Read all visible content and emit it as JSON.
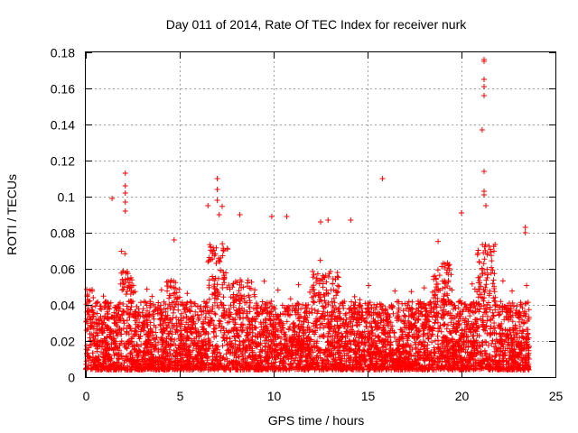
{
  "chart_data": {
    "type": "scatter",
    "title": "Day 011 of 2014, Rate Of TEC Index for receiver nurk",
    "xlabel": "GPS time / hours",
    "ylabel": "ROTI / TECUs",
    "xlim": [
      0,
      25
    ],
    "ylim": [
      0,
      0.18
    ],
    "x_ticks": [
      0,
      5,
      10,
      15,
      20,
      25
    ],
    "x_tick_labels": [
      "0",
      "5",
      "10",
      "15",
      "20",
      "25"
    ],
    "y_ticks": [
      0,
      0.02,
      0.04,
      0.06,
      0.08,
      0.1,
      0.12,
      0.14,
      0.16,
      0.18
    ],
    "y_tick_labels": [
      "0",
      "0.02",
      "0.04",
      "0.06",
      "0.08",
      "0.1",
      "0.12",
      "0.14",
      "0.16",
      "0.18"
    ],
    "grid": true,
    "marker": "+",
    "color": "#ff0000",
    "series": [
      {
        "name": "ROTI",
        "data_range_hours": [
          0,
          23.6
        ],
        "typical_band": [
          0.005,
          0.045
        ],
        "outliers": [
          {
            "x": 1.4,
            "y": 0.099
          },
          {
            "x": 2.1,
            "y": 0.113
          },
          {
            "x": 2.1,
            "y": 0.106
          },
          {
            "x": 2.1,
            "y": 0.102
          },
          {
            "x": 2.1,
            "y": 0.097
          },
          {
            "x": 2.1,
            "y": 0.092
          },
          {
            "x": 4.7,
            "y": 0.076
          },
          {
            "x": 6.5,
            "y": 0.095
          },
          {
            "x": 7.0,
            "y": 0.11
          },
          {
            "x": 7.0,
            "y": 0.104
          },
          {
            "x": 7.0,
            "y": 0.098
          },
          {
            "x": 7.1,
            "y": 0.09
          },
          {
            "x": 8.2,
            "y": 0.09
          },
          {
            "x": 9.9,
            "y": 0.089
          },
          {
            "x": 10.7,
            "y": 0.089
          },
          {
            "x": 12.5,
            "y": 0.086
          },
          {
            "x": 12.9,
            "y": 0.087
          },
          {
            "x": 14.1,
            "y": 0.087
          },
          {
            "x": 15.8,
            "y": 0.11
          },
          {
            "x": 20.0,
            "y": 0.091
          },
          {
            "x": 21.2,
            "y": 0.176
          },
          {
            "x": 21.2,
            "y": 0.175
          },
          {
            "x": 21.2,
            "y": 0.165
          },
          {
            "x": 21.2,
            "y": 0.161
          },
          {
            "x": 21.2,
            "y": 0.156
          },
          {
            "x": 21.1,
            "y": 0.137
          },
          {
            "x": 21.2,
            "y": 0.114
          },
          {
            "x": 21.2,
            "y": 0.103
          },
          {
            "x": 21.2,
            "y": 0.101
          },
          {
            "x": 21.3,
            "y": 0.095
          },
          {
            "x": 23.4,
            "y": 0.083
          },
          {
            "x": 23.4,
            "y": 0.08
          }
        ]
      }
    ]
  }
}
